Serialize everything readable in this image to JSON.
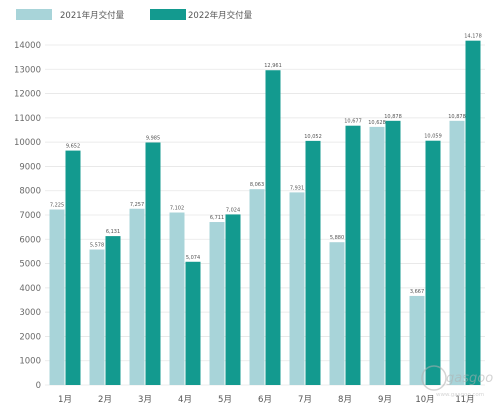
{
  "chart_data": {
    "type": "bar",
    "title": "",
    "xlabel": "",
    "ylabel": "",
    "categories": [
      "1月",
      "2月",
      "3月",
      "4月",
      "5月",
      "6月",
      "7月",
      "8月",
      "9月",
      "10月",
      "11月"
    ],
    "series": [
      {
        "name": "2021年月交付量",
        "color": "#a8d4d9",
        "values": [
          7225,
          5578,
          7257,
          7102,
          6711,
          8063,
          7931,
          5880,
          10628,
          3667,
          10878
        ],
        "labels": [
          "7,225",
          "5,578",
          "7,257",
          "7,102",
          "6,711",
          "8,063",
          "7,931",
          "5,880",
          "10,628",
          "3,667",
          "10,878"
        ]
      },
      {
        "name": "2022年月交付量",
        "color": "#139a8f",
        "values": [
          9652,
          6131,
          9985,
          5074,
          7024,
          12961,
          10052,
          10677,
          10878,
          10059,
          14178
        ],
        "labels": [
          "9,652",
          "6,131",
          "9,985",
          "5,074",
          "7,024",
          "12,961",
          "10,052",
          "10,677",
          "10,878",
          "10,059",
          "14,178"
        ]
      }
    ],
    "ylim": [
      0,
      14000
    ],
    "yticks": [
      0,
      1000,
      2000,
      3000,
      4000,
      5000,
      6000,
      7000,
      8000,
      9000,
      10000,
      11000,
      12000,
      13000,
      14000
    ],
    "grid": "horizontal",
    "legend_position": "top-left"
  },
  "watermark": {
    "text": "gasgoo",
    "url": "www.gasgoo.com"
  }
}
